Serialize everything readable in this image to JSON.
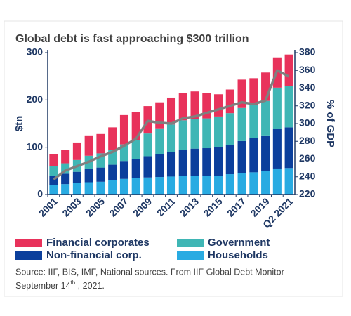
{
  "chart_data": {
    "type": "stacked-bar-line",
    "title": "Global debt is fast approaching $300 trillion",
    "y_label": "$tn",
    "y2_label": "% of GDP",
    "categories": [
      "2001",
      null,
      "2003",
      null,
      "2005",
      null,
      "2007",
      null,
      "2009",
      null,
      "2011",
      null,
      "2013",
      null,
      "2015",
      null,
      "2017",
      null,
      "2019",
      null,
      "Q2 2021"
    ],
    "series": [
      {
        "name": "Households",
        "color": "#29abe2",
        "values": [
          20,
          22,
          24,
          26,
          27,
          30,
          33,
          35,
          36,
          37,
          38,
          40,
          40,
          40,
          40,
          43,
          45,
          47,
          50,
          55,
          56
        ]
      },
      {
        "name": "Non-financial corp.",
        "color": "#0b3f9c",
        "values": [
          20,
          22,
          24,
          28,
          30,
          33,
          38,
          40,
          45,
          48,
          52,
          55,
          57,
          58,
          60,
          62,
          68,
          72,
          75,
          84,
          86
        ]
      },
      {
        "name": "Government",
        "color": "#3fb6b5",
        "values": [
          20,
          22,
          25,
          28,
          30,
          32,
          35,
          40,
          48,
          55,
          58,
          62,
          63,
          63,
          65,
          67,
          70,
          70,
          73,
          87,
          88
        ]
      },
      {
        "name": "Financial corporates",
        "color": "#e8325b",
        "values": [
          25,
          29,
          37,
          43,
          41,
          47,
          62,
          60,
          58,
          55,
          57,
          58,
          58,
          54,
          47,
          50,
          60,
          57,
          60,
          64,
          66
        ]
      },
      {
        "type": "line",
        "axis": "y2",
        "color": "#7f7f7f",
        "values": [
          237,
          247,
          252,
          257,
          263,
          268,
          275,
          283,
          303,
          301,
          300,
          306,
          308,
          312,
          316,
          320,
          324,
          322,
          326,
          360,
          353
        ]
      }
    ],
    "ylim": [
      0,
      300
    ],
    "yticks": [
      0,
      100,
      200,
      300
    ],
    "y2lim": [
      220,
      380
    ],
    "y2ticks": [
      220,
      240,
      260,
      280,
      300,
      320,
      340,
      360,
      380
    ],
    "source": {
      "line1": "Source: IIF, BIS, IMF, National sources. From IIF Global Debt Monitor",
      "date_prefix": "September 14",
      "date_sup": "th",
      "date_suffix": " , 2021."
    }
  }
}
